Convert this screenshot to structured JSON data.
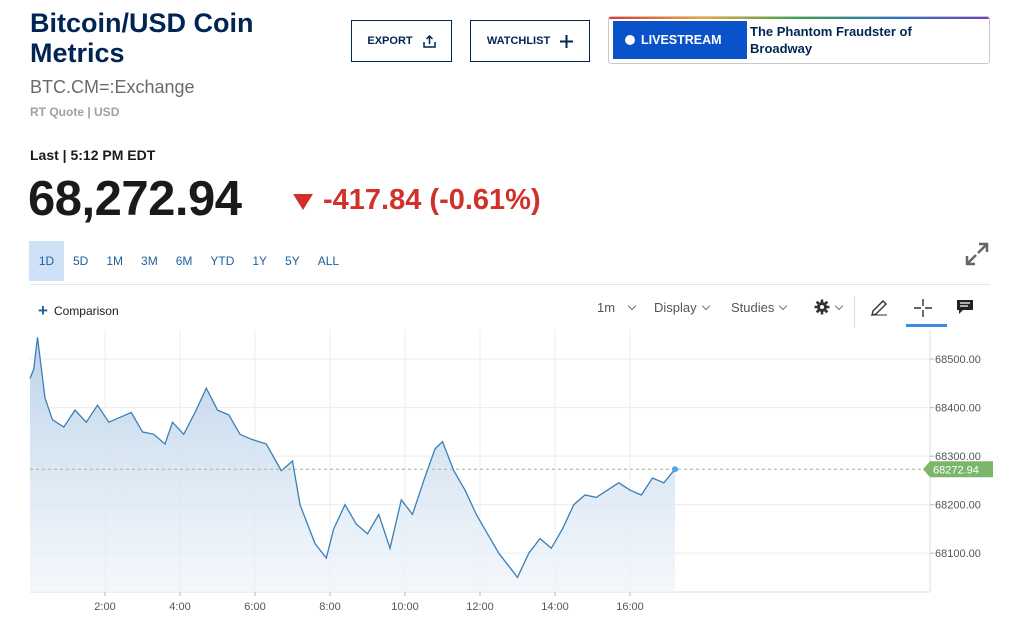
{
  "header": {
    "title": "Bitcoin/USD Coin Metrics",
    "symbol": "BTC.CM=:Exchange",
    "quote_meta": "RT Quote | USD"
  },
  "actions": {
    "export_label": "EXPORT",
    "watchlist_label": "WATCHLIST"
  },
  "livestream": {
    "badge_label": "LIVESTREAM",
    "headline": "The Phantom Fraudster of Broadway"
  },
  "quote": {
    "last_label": "Last | 5:12 PM EDT",
    "price": "68,272.94",
    "change": "-417.84 (-0.61%)",
    "direction": "down"
  },
  "ranges": [
    "1D",
    "5D",
    "1M",
    "3M",
    "6M",
    "YTD",
    "1Y",
    "5Y",
    "ALL"
  ],
  "active_range": "1D",
  "toolbar": {
    "comparison_label": "Comparison",
    "interval_label": "1m",
    "display_label": "Display",
    "studies_label": "Studies",
    "icons": [
      "gear-icon",
      "pencil-icon",
      "crosshair-icon",
      "comment-icon"
    ]
  },
  "colors": {
    "brand": "#002554",
    "down": "#d1312b",
    "line": "#3a7fb6",
    "last_price_tag": "#7cb66a",
    "livestream": "#0a52c9"
  },
  "chart_data": {
    "type": "area",
    "x_ticks": [
      "2:00",
      "4:00",
      "6:00",
      "8:00",
      "10:00",
      "12:00",
      "14:00",
      "16:00"
    ],
    "y_ticks": [
      "68500.00",
      "68400.00",
      "68300.00",
      "68200.00",
      "68100.00"
    ],
    "ylim": [
      68020,
      68560
    ],
    "xlim": [
      0.0,
      24.0
    ],
    "last_price_label": "68272.94",
    "last_price": 68272.94,
    "grid": true,
    "x": [
      0.0,
      0.1,
      0.2,
      0.4,
      0.6,
      0.9,
      1.2,
      1.5,
      1.8,
      2.1,
      2.4,
      2.7,
      3.0,
      3.3,
      3.6,
      3.8,
      4.1,
      4.4,
      4.7,
      5.0,
      5.3,
      5.6,
      5.9,
      6.3,
      6.7,
      7.0,
      7.2,
      7.4,
      7.6,
      7.9,
      8.1,
      8.4,
      8.7,
      9.0,
      9.3,
      9.6,
      9.9,
      10.2,
      10.5,
      10.8,
      11.0,
      11.3,
      11.6,
      11.9,
      12.2,
      12.5,
      12.8,
      13.0,
      13.3,
      13.6,
      13.9,
      14.2,
      14.5,
      14.8,
      15.1,
      15.4,
      15.7,
      16.0,
      16.3,
      16.6,
      16.9,
      17.2
    ],
    "y": [
      68460,
      68480,
      68545,
      68420,
      68375,
      68360,
      68395,
      68370,
      68405,
      68370,
      68380,
      68390,
      68350,
      68345,
      68325,
      68370,
      68345,
      68390,
      68440,
      68395,
      68385,
      68345,
      68335,
      68325,
      68270,
      68290,
      68200,
      68160,
      68120,
      68090,
      68150,
      68200,
      68160,
      68140,
      68180,
      68110,
      68210,
      68180,
      68250,
      68315,
      68330,
      68270,
      68230,
      68180,
      68140,
      68100,
      68070,
      68050,
      68100,
      68130,
      68110,
      68150,
      68200,
      68220,
      68215,
      68230,
      68245,
      68230,
      68220,
      68255,
      68245,
      68273
    ]
  }
}
